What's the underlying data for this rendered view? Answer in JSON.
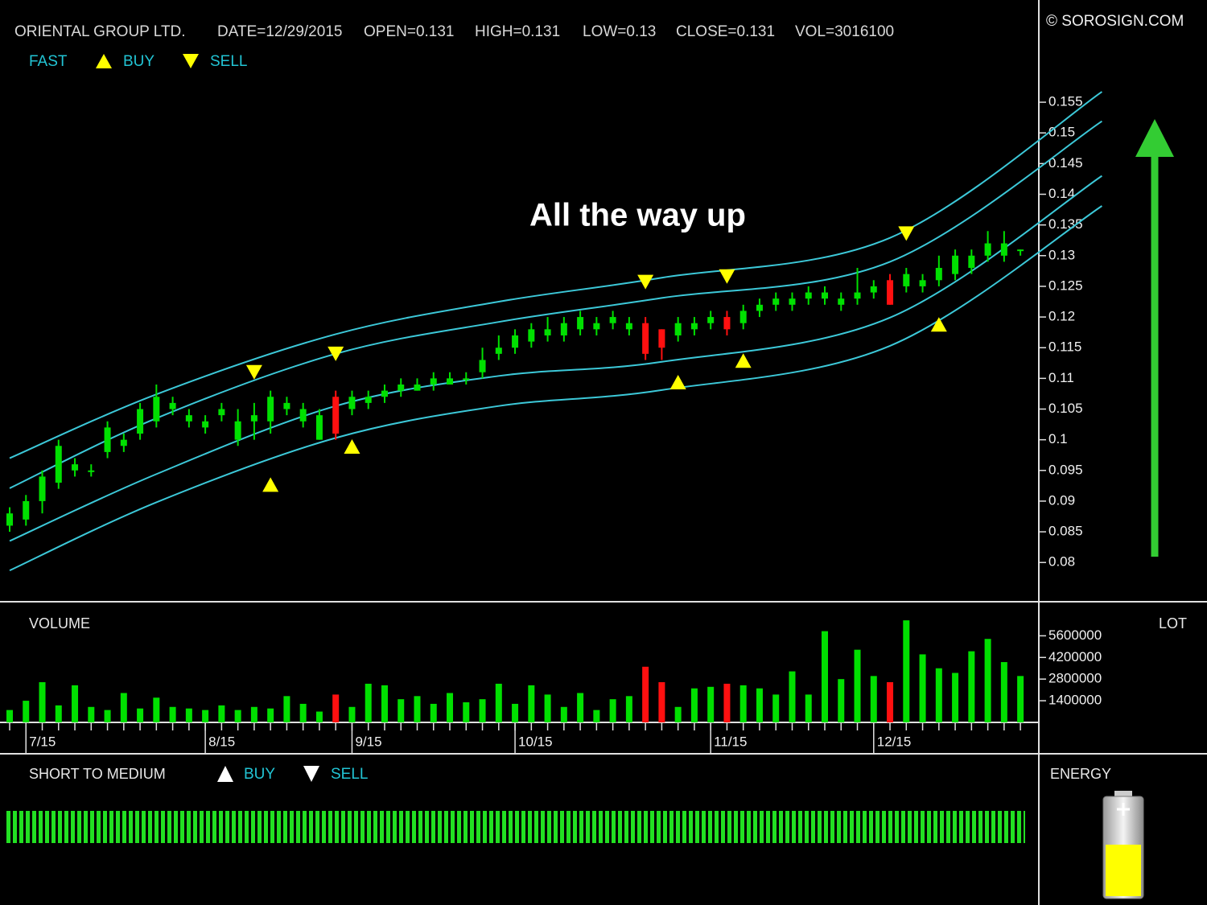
{
  "header": {
    "symbol": "ORIENTAL GROUP LTD.",
    "date": "DATE=12/29/2015",
    "open": "OPEN=0.131",
    "high": "HIGH=0.131",
    "low": "LOW=0.13",
    "close": "CLOSE=0.131",
    "vol": "VOL=3016100",
    "copyright": "© SOROSIGN.COM"
  },
  "chart_data": {
    "type": "candlestick",
    "legend": {
      "fast": "FAST",
      "buy": "BUY",
      "sell": "SELL"
    },
    "annotation": "All the way up",
    "categories": [
      null,
      "7/15",
      null,
      null,
      null,
      null,
      null,
      null,
      null,
      null,
      null,
      null,
      "8/15",
      null,
      null,
      null,
      null,
      null,
      null,
      null,
      null,
      "9/15",
      null,
      null,
      null,
      null,
      null,
      null,
      null,
      null,
      null,
      "10/15",
      null,
      null,
      null,
      null,
      null,
      null,
      null,
      null,
      null,
      null,
      null,
      "11/15",
      null,
      null,
      null,
      null,
      null,
      null,
      null,
      null,
      null,
      "12/15",
      null,
      null,
      null,
      null,
      null,
      null,
      null,
      null,
      null
    ],
    "open": [
      0.086,
      0.087,
      0.09,
      0.093,
      0.095,
      0.095,
      0.098,
      0.099,
      0.101,
      0.103,
      0.105,
      0.103,
      0.102,
      0.104,
      0.1,
      0.103,
      0.103,
      0.105,
      0.103,
      0.1,
      0.107,
      0.105,
      0.106,
      0.107,
      0.108,
      0.108,
      0.109,
      0.109,
      0.11,
      0.111,
      0.114,
      0.115,
      0.116,
      0.117,
      0.117,
      0.118,
      0.118,
      0.119,
      0.118,
      0.119,
      0.118,
      0.117,
      0.118,
      0.119,
      0.12,
      0.119,
      0.121,
      0.122,
      0.122,
      0.123,
      0.123,
      0.122,
      0.123,
      0.124,
      0.126,
      0.125,
      0.125,
      0.126,
      0.127,
      0.128,
      0.13,
      0.13,
      0.131
    ],
    "high": [
      0.089,
      0.091,
      0.095,
      0.1,
      0.097,
      0.096,
      0.103,
      0.101,
      0.106,
      0.109,
      0.107,
      0.105,
      0.104,
      0.106,
      0.105,
      0.106,
      0.108,
      0.107,
      0.106,
      0.105,
      0.108,
      0.108,
      0.108,
      0.109,
      0.11,
      0.11,
      0.111,
      0.111,
      0.111,
      0.115,
      0.117,
      0.118,
      0.119,
      0.12,
      0.12,
      0.121,
      0.12,
      0.121,
      0.12,
      0.12,
      0.118,
      0.12,
      0.12,
      0.121,
      0.121,
      0.122,
      0.123,
      0.124,
      0.124,
      0.125,
      0.125,
      0.124,
      0.128,
      0.126,
      0.127,
      0.128,
      0.127,
      0.13,
      0.131,
      0.131,
      0.134,
      0.134,
      0.131
    ],
    "low": [
      0.085,
      0.086,
      0.088,
      0.092,
      0.094,
      0.094,
      0.097,
      0.098,
      0.1,
      0.102,
      0.104,
      0.102,
      0.101,
      0.103,
      0.099,
      0.1,
      0.101,
      0.104,
      0.102,
      0.1,
      0.1,
      0.104,
      0.105,
      0.106,
      0.107,
      0.108,
      0.108,
      0.109,
      0.109,
      0.11,
      0.113,
      0.114,
      0.115,
      0.116,
      0.116,
      0.117,
      0.117,
      0.118,
      0.117,
      0.113,
      0.113,
      0.116,
      0.117,
      0.118,
      0.117,
      0.118,
      0.12,
      0.121,
      0.121,
      0.122,
      0.122,
      0.121,
      0.122,
      0.123,
      0.122,
      0.124,
      0.124,
      0.125,
      0.126,
      0.127,
      0.129,
      0.129,
      0.13
    ],
    "close": [
      0.088,
      0.09,
      0.094,
      0.099,
      0.096,
      0.095,
      0.102,
      0.1,
      0.105,
      0.107,
      0.106,
      0.104,
      0.103,
      0.105,
      0.103,
      0.104,
      0.107,
      0.106,
      0.105,
      0.104,
      0.101,
      0.107,
      0.107,
      0.108,
      0.109,
      0.109,
      0.11,
      0.11,
      0.11,
      0.113,
      0.115,
      0.117,
      0.118,
      0.118,
      0.119,
      0.12,
      0.119,
      0.12,
      0.119,
      0.114,
      0.115,
      0.119,
      0.119,
      0.12,
      0.118,
      0.121,
      0.122,
      0.123,
      0.123,
      0.124,
      0.124,
      0.123,
      0.124,
      0.125,
      0.122,
      0.127,
      0.126,
      0.128,
      0.13,
      0.13,
      0.132,
      0.132,
      0.131
    ],
    "up_color": "#00e000",
    "down_color": "#ff1010",
    "ylim": [
      0.074,
      0.171
    ],
    "yticks": [
      0.08,
      0.085,
      0.09,
      0.095,
      0.1,
      0.105,
      0.11,
      0.115,
      0.12,
      0.125,
      0.13,
      0.135,
      0.14,
      0.145,
      0.15,
      0.155
    ],
    "bands": {
      "color": "#3cc8d8",
      "x": [
        0,
        9,
        20,
        30,
        40,
        54,
        67
      ],
      "series": [
        {
          "values": [
            0.097,
            0.1074,
            0.1172,
            0.1225,
            0.1264,
            0.1329,
            0.1567
          ]
        },
        {
          "values": [
            0.0921,
            0.1035,
            0.114,
            0.1192,
            0.1231,
            0.129,
            0.1519
          ]
        },
        {
          "values": [
            0.0835,
            0.0944,
            0.1055,
            0.1104,
            0.1127,
            0.1199,
            0.143
          ]
        },
        {
          "values": [
            0.0787,
            0.0898,
            0.1003,
            0.1055,
            0.1081,
            0.1153,
            0.1381
          ]
        }
      ]
    },
    "buy_signals": {
      "color": "#ffff00",
      "x": [
        16,
        21,
        41,
        45,
        57
      ],
      "values": [
        0.0927,
        0.0989,
        0.1094,
        0.1129,
        0.1188
      ]
    },
    "sell_signals": {
      "color": "#ffff00",
      "x": [
        15,
        20,
        39,
        44,
        55
      ],
      "values": [
        0.111,
        0.114,
        0.1257,
        0.1266,
        0.1336
      ]
    },
    "volume": {
      "title": "VOLUME",
      "unit": "LOT",
      "ylim": [
        0,
        7700000
      ],
      "yticks": [
        1400000,
        2800000,
        4200000,
        5600000
      ],
      "values": [
        800000,
        1400000,
        2600000,
        1100000,
        2400000,
        1000000,
        800000,
        1900000,
        900000,
        1600000,
        1000000,
        900000,
        800000,
        1100000,
        800000,
        1000000,
        900000,
        1700000,
        1200000,
        700000,
        1800000,
        1000000,
        2500000,
        2400000,
        1500000,
        1700000,
        1200000,
        1900000,
        1300000,
        1500000,
        2500000,
        1200000,
        2400000,
        1800000,
        1000000,
        1900000,
        800000,
        1500000,
        1700000,
        3600000,
        2600000,
        1000000,
        2200000,
        2300000,
        2500000,
        2400000,
        2200000,
        1800000,
        3300000,
        1800000,
        5900000,
        2800000,
        4700000,
        3000000,
        2600000,
        6600000,
        4400000,
        3500000,
        3200000,
        4600000,
        5400000,
        3900000,
        3000000
      ]
    },
    "signal_panel": {
      "title": "SHORT TO MEDIUM",
      "buy": "BUY",
      "sell": "SELL"
    },
    "energy_panel": {
      "title": "ENERGY"
    }
  }
}
